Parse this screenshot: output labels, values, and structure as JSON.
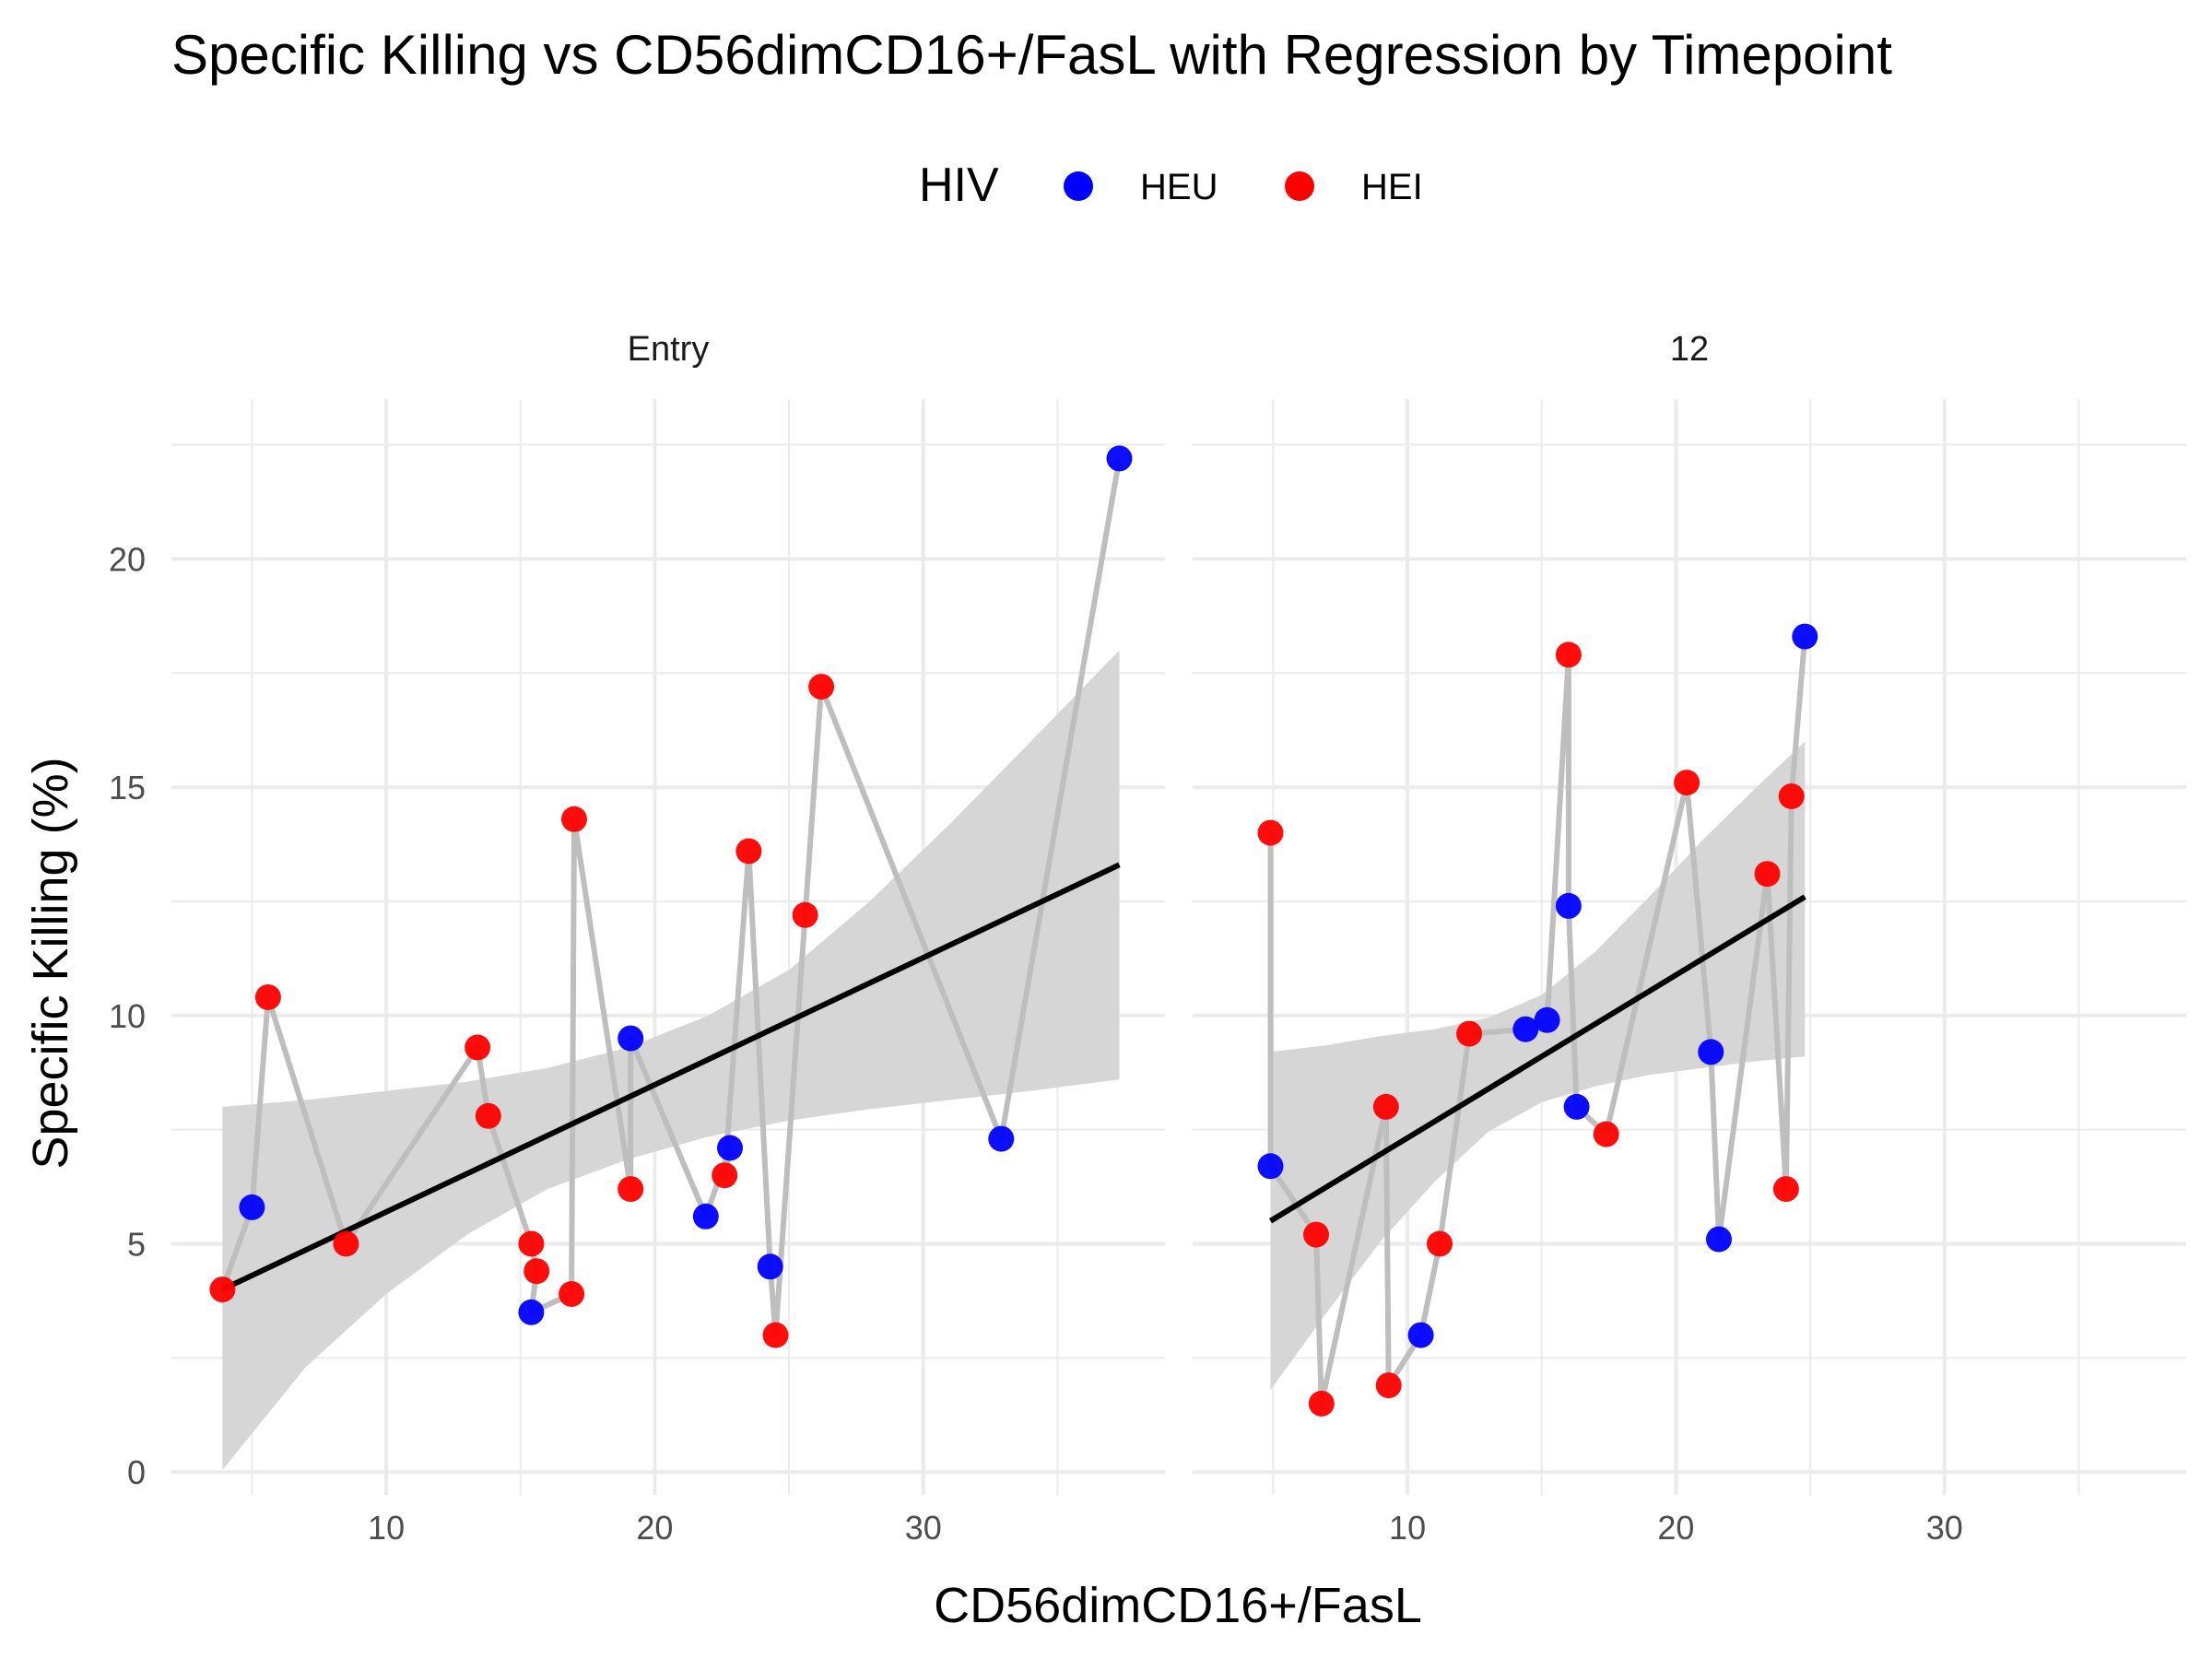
{
  "title": "Specific Killing vs CD56dimCD16+/FasL with Regression by Timepoint",
  "legend": {
    "title": "HIV",
    "position": "top",
    "items": [
      {
        "label": "HEU",
        "color": "#0000FF"
      },
      {
        "label": "HEI",
        "color": "#FF0000"
      }
    ]
  },
  "chart_data": {
    "type": "scatter",
    "xlabel": "CD56dimCD16+/FasL",
    "ylabel": "Specific Killing (%)",
    "xlim": [
      2,
      39
    ],
    "ylim": [
      -0.5,
      23.5
    ],
    "x_ticks": [
      10,
      20,
      30
    ],
    "y_ticks": [
      0,
      5,
      10,
      15,
      20
    ],
    "grid": true,
    "connecting_line_color": "#BEBEBE",
    "ribbon_color": "#D6D6D6",
    "regression_color": "#000000",
    "panels": [
      {
        "name": "Entry",
        "points": [
          {
            "x": 3.9,
            "y": 4.0,
            "hiv": "HEI"
          },
          {
            "x": 5.0,
            "y": 5.8,
            "hiv": "HEU"
          },
          {
            "x": 5.6,
            "y": 10.4,
            "hiv": "HEI"
          },
          {
            "x": 8.5,
            "y": 5.0,
            "hiv": "HEI"
          },
          {
            "x": 13.4,
            "y": 9.3,
            "hiv": "HEI"
          },
          {
            "x": 13.8,
            "y": 7.8,
            "hiv": "HEI"
          },
          {
            "x": 15.4,
            "y": 5.0,
            "hiv": "HEI"
          },
          {
            "x": 15.6,
            "y": 4.4,
            "hiv": "HEI"
          },
          {
            "x": 15.4,
            "y": 3.5,
            "hiv": "HEU"
          },
          {
            "x": 16.9,
            "y": 3.9,
            "hiv": "HEI"
          },
          {
            "x": 17.0,
            "y": 14.3,
            "hiv": "HEI"
          },
          {
            "x": 19.1,
            "y": 6.2,
            "hiv": "HEI"
          },
          {
            "x": 19.1,
            "y": 9.5,
            "hiv": "HEU"
          },
          {
            "x": 21.9,
            "y": 5.6,
            "hiv": "HEU"
          },
          {
            "x": 22.8,
            "y": 7.1,
            "hiv": "HEU"
          },
          {
            "x": 22.6,
            "y": 6.5,
            "hiv": "HEI"
          },
          {
            "x": 23.5,
            "y": 13.6,
            "hiv": "HEI"
          },
          {
            "x": 24.3,
            "y": 4.5,
            "hiv": "HEU"
          },
          {
            "x": 24.5,
            "y": 3.0,
            "hiv": "HEI"
          },
          {
            "x": 25.6,
            "y": 12.2,
            "hiv": "HEI"
          },
          {
            "x": 26.2,
            "y": 17.2,
            "hiv": "HEI"
          },
          {
            "x": 32.9,
            "y": 7.3,
            "hiv": "HEU"
          },
          {
            "x": 37.3,
            "y": 22.2,
            "hiv": "HEU"
          }
        ],
        "regression": {
          "x": [
            3.9,
            37.3
          ],
          "y": [
            4.0,
            13.3
          ]
        },
        "ribbon": {
          "x": [
            3.9,
            7.0,
            10.0,
            13.0,
            16.0,
            19.0,
            22.0,
            25.0,
            28.0,
            31.0,
            34.0,
            37.3
          ],
          "lower": [
            0.05,
            2.3,
            3.9,
            5.2,
            6.2,
            6.85,
            7.35,
            7.7,
            7.95,
            8.15,
            8.35,
            8.6
          ],
          "upper": [
            8.0,
            8.15,
            8.35,
            8.55,
            8.85,
            9.3,
            10.0,
            11.0,
            12.5,
            14.2,
            16.0,
            18.0
          ]
        }
      },
      {
        "name": "12",
        "points": [
          {
            "x": 4.9,
            "y": 14.0,
            "hiv": "HEI"
          },
          {
            "x": 4.9,
            "y": 6.7,
            "hiv": "HEU"
          },
          {
            "x": 6.6,
            "y": 5.2,
            "hiv": "HEI"
          },
          {
            "x": 6.8,
            "y": 1.5,
            "hiv": "HEI"
          },
          {
            "x": 9.2,
            "y": 8.0,
            "hiv": "HEI"
          },
          {
            "x": 9.3,
            "y": 1.9,
            "hiv": "HEI"
          },
          {
            "x": 10.5,
            "y": 3.0,
            "hiv": "HEU"
          },
          {
            "x": 11.2,
            "y": 5.0,
            "hiv": "HEI"
          },
          {
            "x": 12.3,
            "y": 9.6,
            "hiv": "HEI"
          },
          {
            "x": 14.4,
            "y": 9.7,
            "hiv": "HEU"
          },
          {
            "x": 15.2,
            "y": 9.9,
            "hiv": "HEU"
          },
          {
            "x": 16.0,
            "y": 17.9,
            "hiv": "HEI"
          },
          {
            "x": 16.0,
            "y": 12.4,
            "hiv": "HEU"
          },
          {
            "x": 16.3,
            "y": 8.0,
            "hiv": "HEU"
          },
          {
            "x": 17.4,
            "y": 7.4,
            "hiv": "HEI"
          },
          {
            "x": 20.4,
            "y": 15.1,
            "hiv": "HEI"
          },
          {
            "x": 21.3,
            "y": 9.2,
            "hiv": "HEU"
          },
          {
            "x": 21.6,
            "y": 5.1,
            "hiv": "HEU"
          },
          {
            "x": 23.4,
            "y": 13.1,
            "hiv": "HEI"
          },
          {
            "x": 24.1,
            "y": 6.2,
            "hiv": "HEI"
          },
          {
            "x": 24.3,
            "y": 14.8,
            "hiv": "HEI"
          },
          {
            "x": 24.8,
            "y": 18.3,
            "hiv": "HEU"
          }
        ],
        "regression": {
          "x": [
            4.9,
            24.8
          ],
          "y": [
            5.5,
            12.6
          ]
        },
        "ribbon": {
          "x": [
            4.9,
            7.0,
            9.0,
            11.0,
            13.0,
            15.0,
            17.0,
            19.0,
            21.0,
            23.0,
            24.8
          ],
          "lower": [
            1.8,
            3.5,
            5.05,
            6.35,
            7.45,
            8.1,
            8.45,
            8.7,
            8.85,
            9.0,
            9.1
          ],
          "upper": [
            9.2,
            9.35,
            9.55,
            9.7,
            9.95,
            10.45,
            11.4,
            12.6,
            13.85,
            15.0,
            16.0
          ]
        }
      }
    ]
  }
}
